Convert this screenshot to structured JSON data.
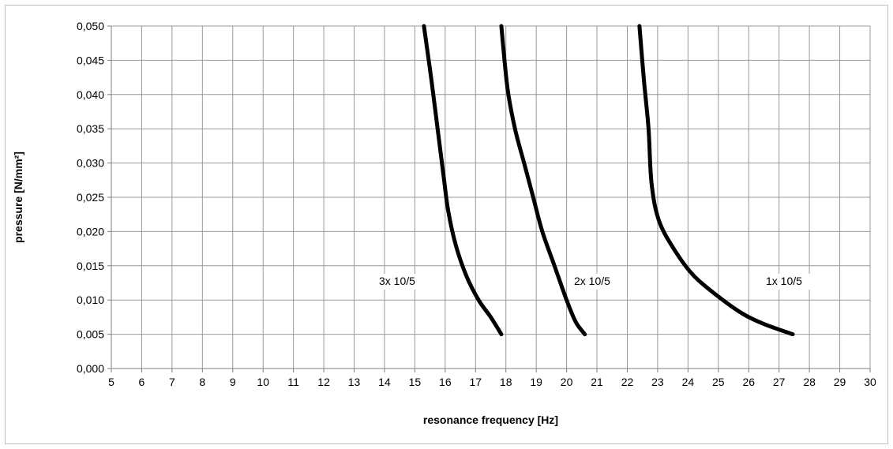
{
  "chart_data": {
    "type": "line",
    "xlabel": "resonance frequency [Hz]",
    "ylabel": "pressure [N/mm²]",
    "xlim": [
      5,
      30
    ],
    "ylim": [
      0,
      0.05
    ],
    "x_ticks": [
      "5",
      "6",
      "7",
      "8",
      "9",
      "10",
      "11",
      "12",
      "13",
      "14",
      "15",
      "16",
      "17",
      "18",
      "19",
      "20",
      "21",
      "22",
      "23",
      "24",
      "25",
      "26",
      "27",
      "28",
      "29",
      "30"
    ],
    "y_ticks": [
      "0,000",
      "0,005",
      "0,010",
      "0,015",
      "0,020",
      "0,025",
      "0,030",
      "0,035",
      "0,040",
      "0,045",
      "0,050"
    ],
    "grid": true,
    "line_color": "#000000",
    "grid_color": "#999999",
    "series": [
      {
        "name": "3x 10/5",
        "points": [
          [
            17.85,
            0.005
          ],
          [
            17.5,
            0.0075
          ],
          [
            17.1,
            0.01
          ],
          [
            16.7,
            0.0135
          ],
          [
            16.35,
            0.018
          ],
          [
            16.1,
            0.023
          ],
          [
            15.95,
            0.028
          ],
          [
            15.75,
            0.035
          ],
          [
            15.55,
            0.042
          ],
          [
            15.3,
            0.05
          ]
        ]
      },
      {
        "name": "2x 10/5",
        "points": [
          [
            20.6,
            0.005
          ],
          [
            20.3,
            0.0068
          ],
          [
            20.0,
            0.01
          ],
          [
            19.6,
            0.015
          ],
          [
            19.2,
            0.02
          ],
          [
            18.9,
            0.025
          ],
          [
            18.6,
            0.03
          ],
          [
            18.3,
            0.035
          ],
          [
            18.05,
            0.041
          ],
          [
            17.85,
            0.05
          ]
        ]
      },
      {
        "name": "1x 10/5",
        "points": [
          [
            27.45,
            0.005
          ],
          [
            26.5,
            0.0065
          ],
          [
            25.8,
            0.008
          ],
          [
            25.0,
            0.0105
          ],
          [
            24.2,
            0.0135
          ],
          [
            23.6,
            0.017
          ],
          [
            23.05,
            0.0215
          ],
          [
            22.8,
            0.027
          ],
          [
            22.7,
            0.035
          ],
          [
            22.55,
            0.042
          ],
          [
            22.4,
            0.05
          ]
        ]
      }
    ]
  }
}
